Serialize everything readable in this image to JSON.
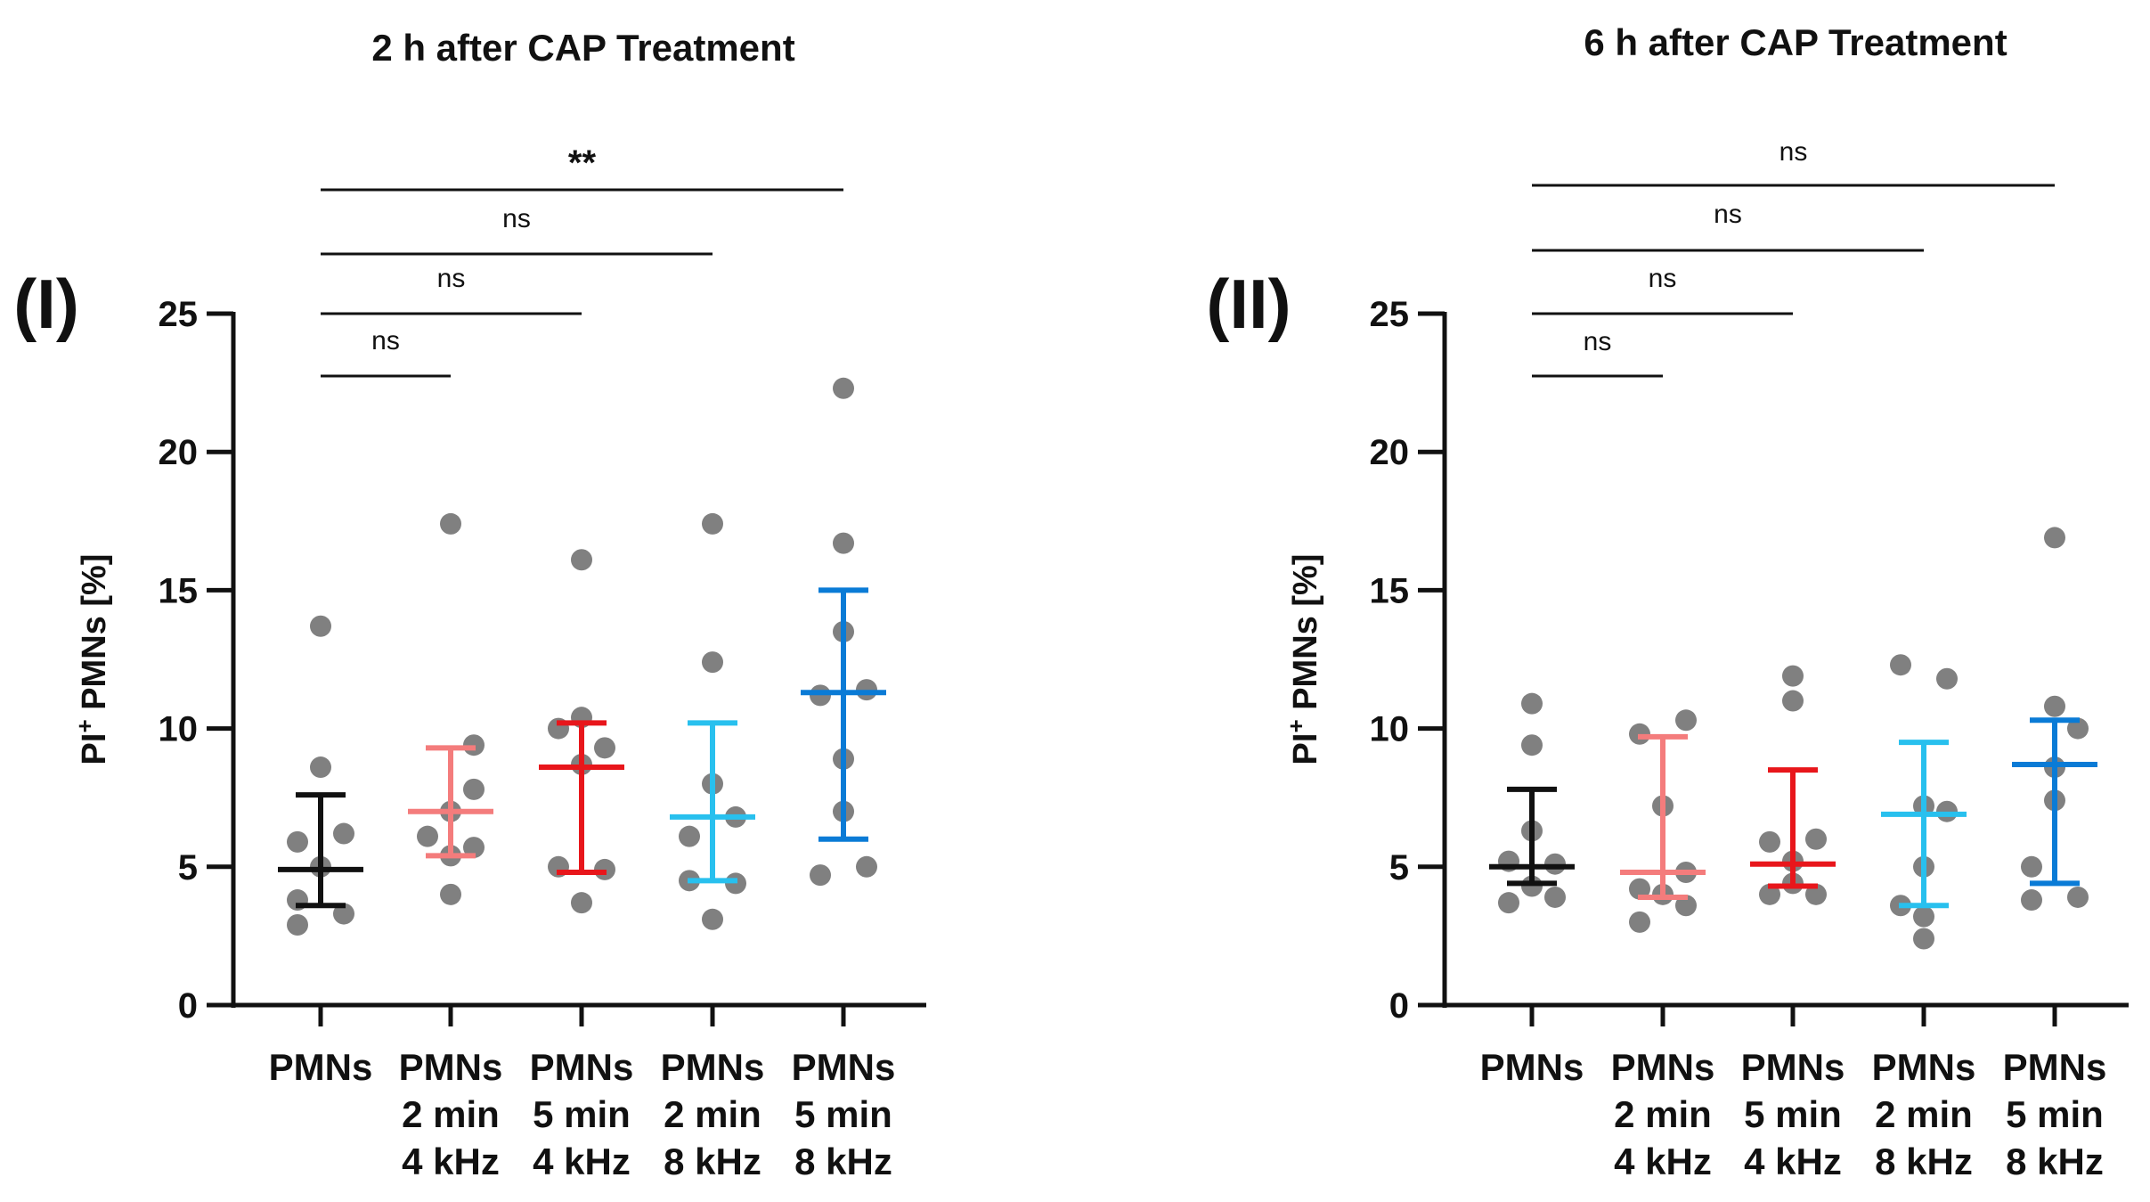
{
  "chart_data": [
    {
      "type": "scatter",
      "panel_label": "(I)",
      "title": "2 h after CAP Treatment",
      "ylabel_main": "PI",
      "ylabel_sup": "+",
      "ylabel_rest": " PMNs [%]",
      "ylim": [
        0,
        25
      ],
      "yticks": [
        "0",
        "5",
        "10",
        "15",
        "20",
        "25"
      ],
      "categories": [
        {
          "lines": [
            "PMNs"
          ],
          "color": "#111111"
        },
        {
          "lines": [
            "PMNs",
            "2 min",
            "4 kHz"
          ],
          "color": "#f47c7c"
        },
        {
          "lines": [
            "PMNs",
            "5 min",
            "4 kHz"
          ],
          "color": "#e8161b"
        },
        {
          "lines": [
            "PMNs",
            "2 min",
            "8 kHz"
          ],
          "color": "#28c0ee"
        },
        {
          "lines": [
            "PMNs",
            "5 min",
            "8 kHz"
          ],
          "color": "#0a7bd6"
        }
      ],
      "points": [
        [
          {
            "dx": 0,
            "y": 13.7
          },
          {
            "dx": 0,
            "y": 8.6
          },
          {
            "dx": 1,
            "y": 6.2
          },
          {
            "dx": -1,
            "y": 5.9
          },
          {
            "dx": 0,
            "y": 5.0
          },
          {
            "dx": -1,
            "y": 3.8
          },
          {
            "dx": 1,
            "y": 3.3
          },
          {
            "dx": -1,
            "y": 2.9
          }
        ],
        [
          {
            "dx": 0,
            "y": 17.4
          },
          {
            "dx": 1,
            "y": 9.4
          },
          {
            "dx": 1,
            "y": 7.8
          },
          {
            "dx": 0,
            "y": 7.0
          },
          {
            "dx": -1,
            "y": 6.1
          },
          {
            "dx": 1,
            "y": 5.7
          },
          {
            "dx": 0,
            "y": 5.4
          },
          {
            "dx": 0,
            "y": 4.0
          }
        ],
        [
          {
            "dx": 0,
            "y": 16.1
          },
          {
            "dx": 0,
            "y": 10.4
          },
          {
            "dx": -1,
            "y": 10.0
          },
          {
            "dx": 1,
            "y": 9.3
          },
          {
            "dx": 0,
            "y": 8.7
          },
          {
            "dx": -1,
            "y": 5.0
          },
          {
            "dx": 1,
            "y": 4.9
          },
          {
            "dx": 0,
            "y": 3.7
          }
        ],
        [
          {
            "dx": 0,
            "y": 17.4
          },
          {
            "dx": 0,
            "y": 12.4
          },
          {
            "dx": 0,
            "y": 8.0
          },
          {
            "dx": 1,
            "y": 6.8
          },
          {
            "dx": -1,
            "y": 6.1
          },
          {
            "dx": 1,
            "y": 4.4
          },
          {
            "dx": -1,
            "y": 4.5
          },
          {
            "dx": 0,
            "y": 3.1
          }
        ],
        [
          {
            "dx": 0,
            "y": 22.3
          },
          {
            "dx": 0,
            "y": 16.7
          },
          {
            "dx": 0,
            "y": 13.5
          },
          {
            "dx": 1,
            "y": 11.4
          },
          {
            "dx": -1,
            "y": 11.2
          },
          {
            "dx": 0,
            "y": 8.9
          },
          {
            "dx": 0,
            "y": 7.0
          },
          {
            "dx": -1,
            "y": 4.7
          },
          {
            "dx": 1,
            "y": 5.0
          }
        ]
      ],
      "median": [
        4.9,
        7.0,
        8.6,
        6.8,
        11.3
      ],
      "iqr": [
        [
          3.6,
          7.6
        ],
        [
          5.4,
          9.3
        ],
        [
          4.8,
          10.2
        ],
        [
          4.5,
          10.2
        ],
        [
          6.0,
          15.0
        ]
      ],
      "comparisons": [
        {
          "to": 1,
          "label": "ns"
        },
        {
          "to": 2,
          "label": "ns"
        },
        {
          "to": 3,
          "label": "ns"
        },
        {
          "to": 4,
          "label": "**"
        }
      ]
    },
    {
      "type": "scatter",
      "panel_label": "(II)",
      "title": "6 h after CAP Treatment",
      "ylabel_main": "PI",
      "ylabel_sup": "+",
      "ylabel_rest": " PMNs [%]",
      "ylim": [
        0,
        25
      ],
      "yticks": [
        "0",
        "5",
        "10",
        "15",
        "20",
        "25"
      ],
      "categories": [
        {
          "lines": [
            "PMNs"
          ],
          "color": "#111111"
        },
        {
          "lines": [
            "PMNs",
            "2 min",
            "4 kHz"
          ],
          "color": "#f47c7c"
        },
        {
          "lines": [
            "PMNs",
            "5 min",
            "4 kHz"
          ],
          "color": "#e8161b"
        },
        {
          "lines": [
            "PMNs",
            "2 min",
            "8 kHz"
          ],
          "color": "#28c0ee"
        },
        {
          "lines": [
            "PMNs",
            "5 min",
            "8 kHz"
          ],
          "color": "#0a7bd6"
        }
      ],
      "points": [
        [
          {
            "dx": 0,
            "y": 10.9
          },
          {
            "dx": 0,
            "y": 9.4
          },
          {
            "dx": 0,
            "y": 6.3
          },
          {
            "dx": -1,
            "y": 5.2
          },
          {
            "dx": 1,
            "y": 5.1
          },
          {
            "dx": 0,
            "y": 4.3
          },
          {
            "dx": -1,
            "y": 3.7
          },
          {
            "dx": 1,
            "y": 3.9
          }
        ],
        [
          {
            "dx": -1,
            "y": 9.8
          },
          {
            "dx": 1,
            "y": 10.3
          },
          {
            "dx": 0,
            "y": 7.2
          },
          {
            "dx": 1,
            "y": 4.8
          },
          {
            "dx": -1,
            "y": 4.2
          },
          {
            "dx": 0,
            "y": 4.0
          },
          {
            "dx": 1,
            "y": 3.6
          },
          {
            "dx": -1,
            "y": 3.0
          }
        ],
        [
          {
            "dx": 0,
            "y": 11.9
          },
          {
            "dx": 0,
            "y": 11.0
          },
          {
            "dx": 1,
            "y": 6.0
          },
          {
            "dx": -1,
            "y": 5.9
          },
          {
            "dx": 0,
            "y": 5.2
          },
          {
            "dx": -1,
            "y": 4.0
          },
          {
            "dx": 1,
            "y": 4.0
          },
          {
            "dx": 0,
            "y": 4.4
          }
        ],
        [
          {
            "dx": -1,
            "y": 12.3
          },
          {
            "dx": 1,
            "y": 11.8
          },
          {
            "dx": 0,
            "y": 7.2
          },
          {
            "dx": 1,
            "y": 7.0
          },
          {
            "dx": 0,
            "y": 5.0
          },
          {
            "dx": -1,
            "y": 3.6
          },
          {
            "dx": 0,
            "y": 3.2
          },
          {
            "dx": 0,
            "y": 2.4
          }
        ],
        [
          {
            "dx": 0,
            "y": 16.9
          },
          {
            "dx": 0,
            "y": 10.8
          },
          {
            "dx": 1,
            "y": 10.0
          },
          {
            "dx": 0,
            "y": 8.6
          },
          {
            "dx": 0,
            "y": 7.4
          },
          {
            "dx": -1,
            "y": 5.0
          },
          {
            "dx": -1,
            "y": 3.8
          },
          {
            "dx": 1,
            "y": 3.9
          }
        ]
      ],
      "median": [
        5.0,
        4.8,
        5.1,
        6.9,
        8.7
      ],
      "iqr": [
        [
          4.4,
          7.8
        ],
        [
          3.9,
          9.7
        ],
        [
          4.3,
          8.5
        ],
        [
          3.6,
          9.5
        ],
        [
          4.4,
          10.3
        ]
      ],
      "comparisons": [
        {
          "to": 1,
          "label": "ns"
        },
        {
          "to": 2,
          "label": "ns"
        },
        {
          "to": 3,
          "label": "ns"
        },
        {
          "to": 4,
          "label": "ns"
        }
      ]
    }
  ],
  "colors": {
    "dot": "#808080",
    "axis": "#111111"
  }
}
